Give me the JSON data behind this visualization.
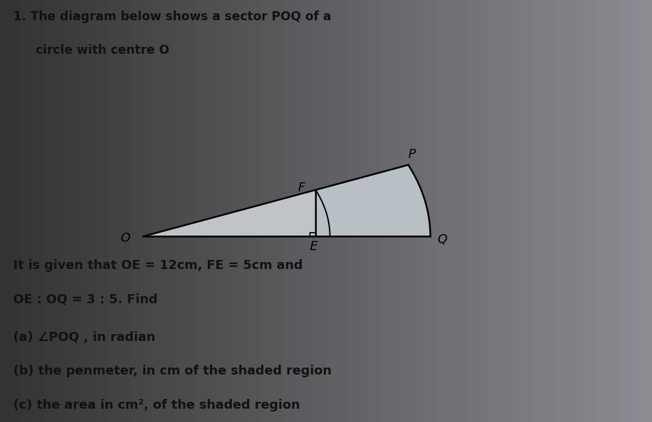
{
  "title_line1": "1. The diagram below shows a sector POQ of a",
  "title_line2": "   circle with centre O",
  "given_line1": "It is given that OE = 12cm, FE = 5cm and",
  "given_line2": "OE : OQ = 3 : 5. Find",
  "question_a": "(a) ∠POQ , in radian",
  "question_b": "(b) the penmeter, in cm of the shaded region",
  "question_c": "(c) the area in cm², of the shaded region",
  "bg_color": "#c8c8c8",
  "bg_color_right": "#e0ddd8",
  "text_color": "#111111",
  "OE": 12,
  "FE": 5,
  "OE_OQ_ratio": [
    3,
    5
  ],
  "diagram_ox": 0.22,
  "diagram_oy": 0.44,
  "diagram_scale": 0.022,
  "sector_fill": "#d0d5d8",
  "triangle_fill": "#c8c8c8"
}
